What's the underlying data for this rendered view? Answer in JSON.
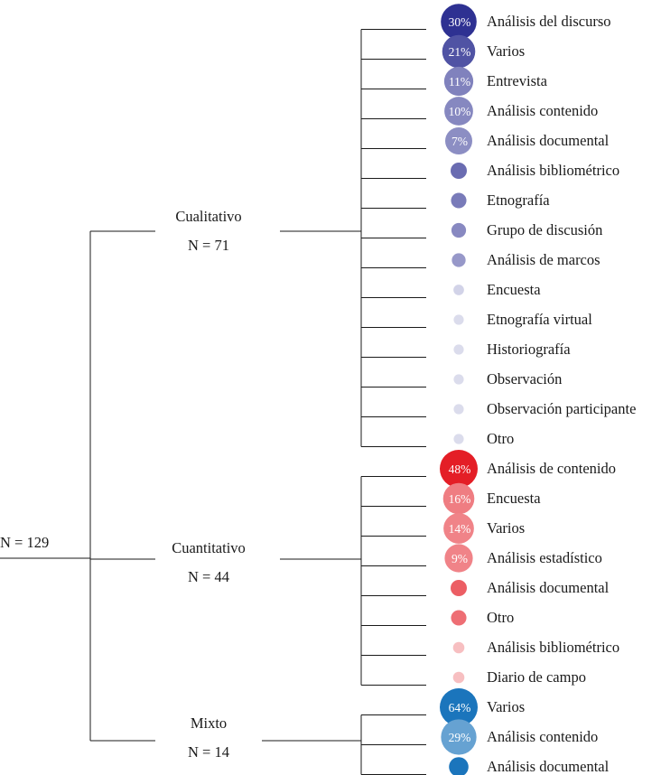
{
  "root": {
    "label": "N = 129"
  },
  "groups": [
    {
      "name": "Cualitativo",
      "n_label": "N = 71",
      "color": "#2e3192",
      "items": [
        {
          "label": "Análisis del discurso",
          "pct": "30%",
          "share": 30
        },
        {
          "label": "Varios",
          "pct": "21%",
          "share": 21
        },
        {
          "label": "Entrevista",
          "pct": "11%",
          "share": 11
        },
        {
          "label": "Análisis contenido",
          "pct": "10%",
          "share": 10
        },
        {
          "label": "Análisis documental",
          "pct": "7%",
          "share": 7
        },
        {
          "label": "Análisis bibliométrico",
          "pct": "",
          "share": 5
        },
        {
          "label": "Etnografía",
          "pct": "",
          "share": 4.5
        },
        {
          "label": "Grupo de discusión",
          "pct": "",
          "share": 4
        },
        {
          "label": "Análisis de marcos",
          "pct": "",
          "share": 3.5
        },
        {
          "label": "Encuesta",
          "pct": "",
          "share": 1.5
        },
        {
          "label": "Etnografía virtual",
          "pct": "",
          "share": 1.2
        },
        {
          "label": "Historiografía",
          "pct": "",
          "share": 1.2
        },
        {
          "label": "Observación",
          "pct": "",
          "share": 1.2
        },
        {
          "label": "Observación participante",
          "pct": "",
          "share": 1.2
        },
        {
          "label": "Otro",
          "pct": "",
          "share": 1.2
        }
      ]
    },
    {
      "name": "Cuantitativo",
      "n_label": "N = 44",
      "color": "#e41e26",
      "items": [
        {
          "label": "Análisis de contenido",
          "pct": "48%",
          "share": 48
        },
        {
          "label": "Encuesta",
          "pct": "16%",
          "share": 16
        },
        {
          "label": "Varios",
          "pct": "14%",
          "share": 14
        },
        {
          "label": "Análisis estadístico",
          "pct": "9%",
          "share": 9
        },
        {
          "label": "Análisis documental",
          "pct": "",
          "share": 5
        },
        {
          "label": "Otro",
          "pct": "",
          "share": 4.5
        },
        {
          "label": "Análisis bibliométrico",
          "pct": "",
          "share": 2
        },
        {
          "label": "Diario de campo",
          "pct": "",
          "share": 2
        }
      ]
    },
    {
      "name": "Mixto",
      "n_label": "N = 14",
      "color": "#1b75bc",
      "items": [
        {
          "label": "Varios",
          "pct": "64%",
          "share": 64
        },
        {
          "label": "Análisis contenido",
          "pct": "29%",
          "share": 29
        },
        {
          "label": "Análisis documental",
          "pct": "",
          "share": 7
        }
      ]
    }
  ]
}
